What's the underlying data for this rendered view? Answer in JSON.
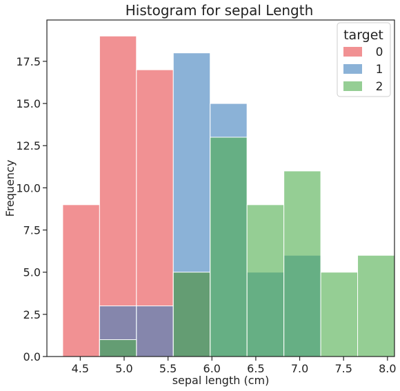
{
  "chart_data": {
    "type": "histogram",
    "title": "Histogram for sepal Length",
    "xlabel": "sepal length (cm)",
    "ylabel": "Frequency",
    "xlim": [
      4.12,
      8.08
    ],
    "ylim": [
      0,
      19.95
    ],
    "bin_edges": [
      4.3,
      4.72,
      5.14,
      5.56,
      5.98,
      6.4,
      6.82,
      7.24,
      7.66,
      8.08
    ],
    "x_ticks": [
      4.5,
      5.0,
      5.5,
      6.0,
      6.5,
      7.0,
      7.5,
      8.0
    ],
    "x_tick_labels": [
      "4.5",
      "5.0",
      "5.5",
      "6.0",
      "6.5",
      "7.0",
      "7.5",
      "8.0"
    ],
    "y_ticks": [
      0,
      2.5,
      5,
      7.5,
      10,
      12.5,
      15,
      17.5
    ],
    "y_tick_labels": [
      "0.0",
      "2.5",
      "5.0",
      "7.5",
      "10.0",
      "12.5",
      "15.0",
      "17.5"
    ],
    "legend": {
      "title": "target",
      "placement": "top-right"
    },
    "series": [
      {
        "name": "0",
        "color": "#e8474b",
        "values": [
          9,
          19,
          17,
          5,
          0,
          0,
          0,
          0,
          0
        ]
      },
      {
        "name": "1",
        "color": "#3d7fbd",
        "values": [
          0,
          3,
          3,
          18,
          15,
          5,
          6,
          0,
          0
        ]
      },
      {
        "name": "2",
        "color": "#4fae4c",
        "values": [
          0,
          1,
          0,
          5,
          13,
          9,
          11,
          5,
          6
        ]
      }
    ],
    "grid": false
  }
}
